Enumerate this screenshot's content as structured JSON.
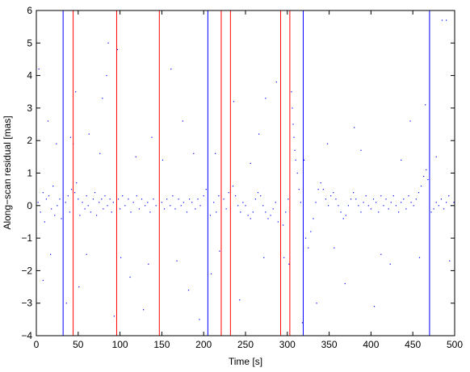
{
  "chart_data": {
    "type": "scatter",
    "title": "",
    "xlabel": "Time [s]",
    "ylabel": "Along−scan residual [mas]",
    "xlim": [
      0,
      500
    ],
    "ylim": [
      -4,
      6
    ],
    "xticks": [
      0,
      50,
      100,
      150,
      200,
      250,
      300,
      350,
      400,
      450,
      500
    ],
    "yticks": [
      -4,
      -3,
      -2,
      -1,
      0,
      1,
      2,
      3,
      4,
      5,
      6
    ],
    "grid": false,
    "legend": "none",
    "point_color": "#0000ff",
    "vertical_lines": {
      "blue": {
        "color": "#0000ff",
        "x": [
          32,
          205,
          319,
          470
        ]
      },
      "red": {
        "color": "#ff0000",
        "x": [
          44,
          96,
          147,
          221,
          232,
          292,
          303
        ]
      }
    },
    "series": [
      {
        "marker": "point",
        "points": [
          [
            2,
            0.1
          ],
          [
            5,
            -0.2
          ],
          [
            8,
            0.4
          ],
          [
            10,
            -0.5
          ],
          [
            12,
            0.2
          ],
          [
            15,
            0.3
          ],
          [
            18,
            -0.1
          ],
          [
            20,
            0.6
          ],
          [
            22,
            -0.3
          ],
          [
            25,
            0.0
          ],
          [
            28,
            0.2
          ],
          [
            30,
            -0.4
          ],
          [
            35,
            0.1
          ],
          [
            38,
            0.3
          ],
          [
            40,
            -0.2
          ],
          [
            42,
            0.5
          ],
          [
            46,
            0.4
          ],
          [
            48,
            0.7
          ],
          [
            50,
            0.2
          ],
          [
            52,
            -0.3
          ],
          [
            55,
            0.1
          ],
          [
            58,
            -0.1
          ],
          [
            60,
            0.3
          ],
          [
            62,
            0.0
          ],
          [
            65,
            -0.2
          ],
          [
            68,
            0.2
          ],
          [
            70,
            0.4
          ],
          [
            72,
            -0.3
          ],
          [
            75,
            0.1
          ],
          [
            78,
            0.2
          ],
          [
            80,
            -0.1
          ],
          [
            82,
            0.3
          ],
          [
            85,
            0.0
          ],
          [
            88,
            0.2
          ],
          [
            90,
            -0.2
          ],
          [
            92,
            0.1
          ],
          [
            98,
            0.2
          ],
          [
            100,
            -0.1
          ],
          [
            103,
            0.3
          ],
          [
            106,
            0.0
          ],
          [
            110,
            0.2
          ],
          [
            113,
            -0.2
          ],
          [
            116,
            0.1
          ],
          [
            120,
            0.3
          ],
          [
            123,
            -0.1
          ],
          [
            126,
            0.2
          ],
          [
            130,
            0.0
          ],
          [
            133,
            0.1
          ],
          [
            136,
            -0.2
          ],
          [
            140,
            0.2
          ],
          [
            143,
            0.0
          ],
          [
            150,
            0.1
          ],
          [
            153,
            -0.1
          ],
          [
            156,
            0.2
          ],
          [
            160,
            0.0
          ],
          [
            163,
            0.3
          ],
          [
            166,
            -0.1
          ],
          [
            170,
            0.2
          ],
          [
            173,
            0.0
          ],
          [
            176,
            0.1
          ],
          [
            180,
            -0.2
          ],
          [
            183,
            0.2
          ],
          [
            186,
            0.1
          ],
          [
            190,
            -0.1
          ],
          [
            193,
            0.2
          ],
          [
            196,
            0.0
          ],
          [
            200,
            0.3
          ],
          [
            203,
            0.5
          ],
          [
            208,
            -0.3
          ],
          [
            212,
            0.1
          ],
          [
            215,
            -0.2
          ],
          [
            218,
            0.3
          ],
          [
            224,
            0.2
          ],
          [
            227,
            -0.1
          ],
          [
            230,
            0.4
          ],
          [
            235,
            0.6
          ],
          [
            238,
            0.3
          ],
          [
            241,
            0.0
          ],
          [
            244,
            -0.2
          ],
          [
            247,
            0.1
          ],
          [
            250,
            0.0
          ],
          [
            253,
            -0.3
          ],
          [
            256,
            -0.4
          ],
          [
            259,
            -0.2
          ],
          [
            262,
            0.2
          ],
          [
            265,
            0.4
          ],
          [
            268,
            0.3
          ],
          [
            271,
            0.0
          ],
          [
            274,
            -0.2
          ],
          [
            277,
            -0.4
          ],
          [
            280,
            -0.3
          ],
          [
            283,
            -0.1
          ],
          [
            286,
            0.1
          ],
          [
            289,
            -0.5
          ],
          [
            295,
            -0.6
          ],
          [
            298,
            -0.2
          ],
          [
            301,
            0.2
          ],
          [
            305,
            3.5
          ],
          [
            306,
            3.0
          ],
          [
            307,
            2.5
          ],
          [
            308,
            2.1
          ],
          [
            309,
            1.7
          ],
          [
            310,
            1.4
          ],
          [
            312,
            1.0
          ],
          [
            314,
            0.5
          ],
          [
            316,
            0.1
          ],
          [
            322,
            -1.0
          ],
          [
            325,
            -1.3
          ],
          [
            328,
            -0.8
          ],
          [
            331,
            -0.4
          ],
          [
            334,
            0.1
          ],
          [
            337,
            0.5
          ],
          [
            340,
            0.7
          ],
          [
            343,
            0.5
          ],
          [
            346,
            0.2
          ],
          [
            349,
            0.0
          ],
          [
            352,
            0.3
          ],
          [
            355,
            0.4
          ],
          [
            358,
            0.2
          ],
          [
            361,
            0.0
          ],
          [
            364,
            -0.2
          ],
          [
            367,
            -0.4
          ],
          [
            370,
            -0.3
          ],
          [
            373,
            0.0
          ],
          [
            376,
            0.2
          ],
          [
            379,
            0.4
          ],
          [
            382,
            0.2
          ],
          [
            385,
            0.0
          ],
          [
            388,
            -0.2
          ],
          [
            391,
            0.1
          ],
          [
            394,
            0.3
          ],
          [
            397,
            0.0
          ],
          [
            400,
            -0.1
          ],
          [
            403,
            0.2
          ],
          [
            406,
            0.1
          ],
          [
            409,
            -0.2
          ],
          [
            412,
            0.3
          ],
          [
            415,
            0.0
          ],
          [
            418,
            0.2
          ],
          [
            421,
            -0.1
          ],
          [
            424,
            0.1
          ],
          [
            427,
            0.3
          ],
          [
            430,
            0.0
          ],
          [
            433,
            -0.2
          ],
          [
            436,
            0.1
          ],
          [
            439,
            0.2
          ],
          [
            442,
            -0.1
          ],
          [
            445,
            0.3
          ],
          [
            448,
            0.1
          ],
          [
            451,
            0.0
          ],
          [
            454,
            0.2
          ],
          [
            457,
            0.4
          ],
          [
            460,
            0.6
          ],
          [
            463,
            0.9
          ],
          [
            466,
            1.1
          ],
          [
            468,
            0.8
          ],
          [
            472,
            -0.2
          ],
          [
            475,
            -0.1
          ],
          [
            478,
            0.1
          ],
          [
            481,
            0.0
          ],
          [
            484,
            0.2
          ],
          [
            487,
            -0.1
          ],
          [
            490,
            0.1
          ],
          [
            493,
            0.3
          ],
          [
            496,
            0.0
          ],
          [
            499,
            0.1
          ],
          [
            3,
            4.2
          ],
          [
            8,
            -2.3
          ],
          [
            14,
            2.6
          ],
          [
            17,
            -1.5
          ],
          [
            24,
            1.9
          ],
          [
            36,
            -3.0
          ],
          [
            41,
            2.1
          ],
          [
            47,
            3.5
          ],
          [
            51,
            -2.5
          ],
          [
            63,
            2.2
          ],
          [
            79,
            3.3
          ],
          [
            84,
            4.0
          ],
          [
            86,
            5.0
          ],
          [
            93,
            -3.4
          ],
          [
            97,
            4.8
          ],
          [
            112,
            -2.2
          ],
          [
            128,
            -3.2
          ],
          [
            138,
            2.1
          ],
          [
            161,
            4.2
          ],
          [
            175,
            2.6
          ],
          [
            182,
            -2.6
          ],
          [
            195,
            -3.5
          ],
          [
            209,
            -2.1
          ],
          [
            214,
            1.6
          ],
          [
            236,
            3.2
          ],
          [
            243,
            -2.9
          ],
          [
            266,
            2.2
          ],
          [
            274,
            3.3
          ],
          [
            287,
            3.8
          ],
          [
            296,
            -1.6
          ],
          [
            318,
            -3.6
          ],
          [
            335,
            -3.0
          ],
          [
            348,
            1.9
          ],
          [
            369,
            -2.4
          ],
          [
            380,
            2.4
          ],
          [
            404,
            -3.1
          ],
          [
            423,
            -1.8
          ],
          [
            447,
            2.6
          ],
          [
            465,
            3.1
          ],
          [
            485,
            5.7
          ],
          [
            490,
            5.7
          ],
          [
            44,
            1.9
          ],
          [
            60,
            -1.5
          ],
          [
            76,
            1.6
          ],
          [
            101,
            -1.6
          ],
          [
            119,
            1.5
          ],
          [
            134,
            -1.8
          ],
          [
            151,
            1.4
          ],
          [
            168,
            -1.7
          ],
          [
            188,
            1.6
          ],
          [
            219,
            -1.4
          ],
          [
            256,
            1.3
          ],
          [
            272,
            -1.6
          ],
          [
            302,
            -1.8
          ],
          [
            320,
            1.4
          ],
          [
            356,
            -1.3
          ],
          [
            388,
            1.7
          ],
          [
            412,
            -1.5
          ],
          [
            436,
            1.4
          ],
          [
            458,
            -1.6
          ],
          [
            478,
            1.5
          ],
          [
            494,
            -1.7
          ]
        ]
      }
    ]
  }
}
